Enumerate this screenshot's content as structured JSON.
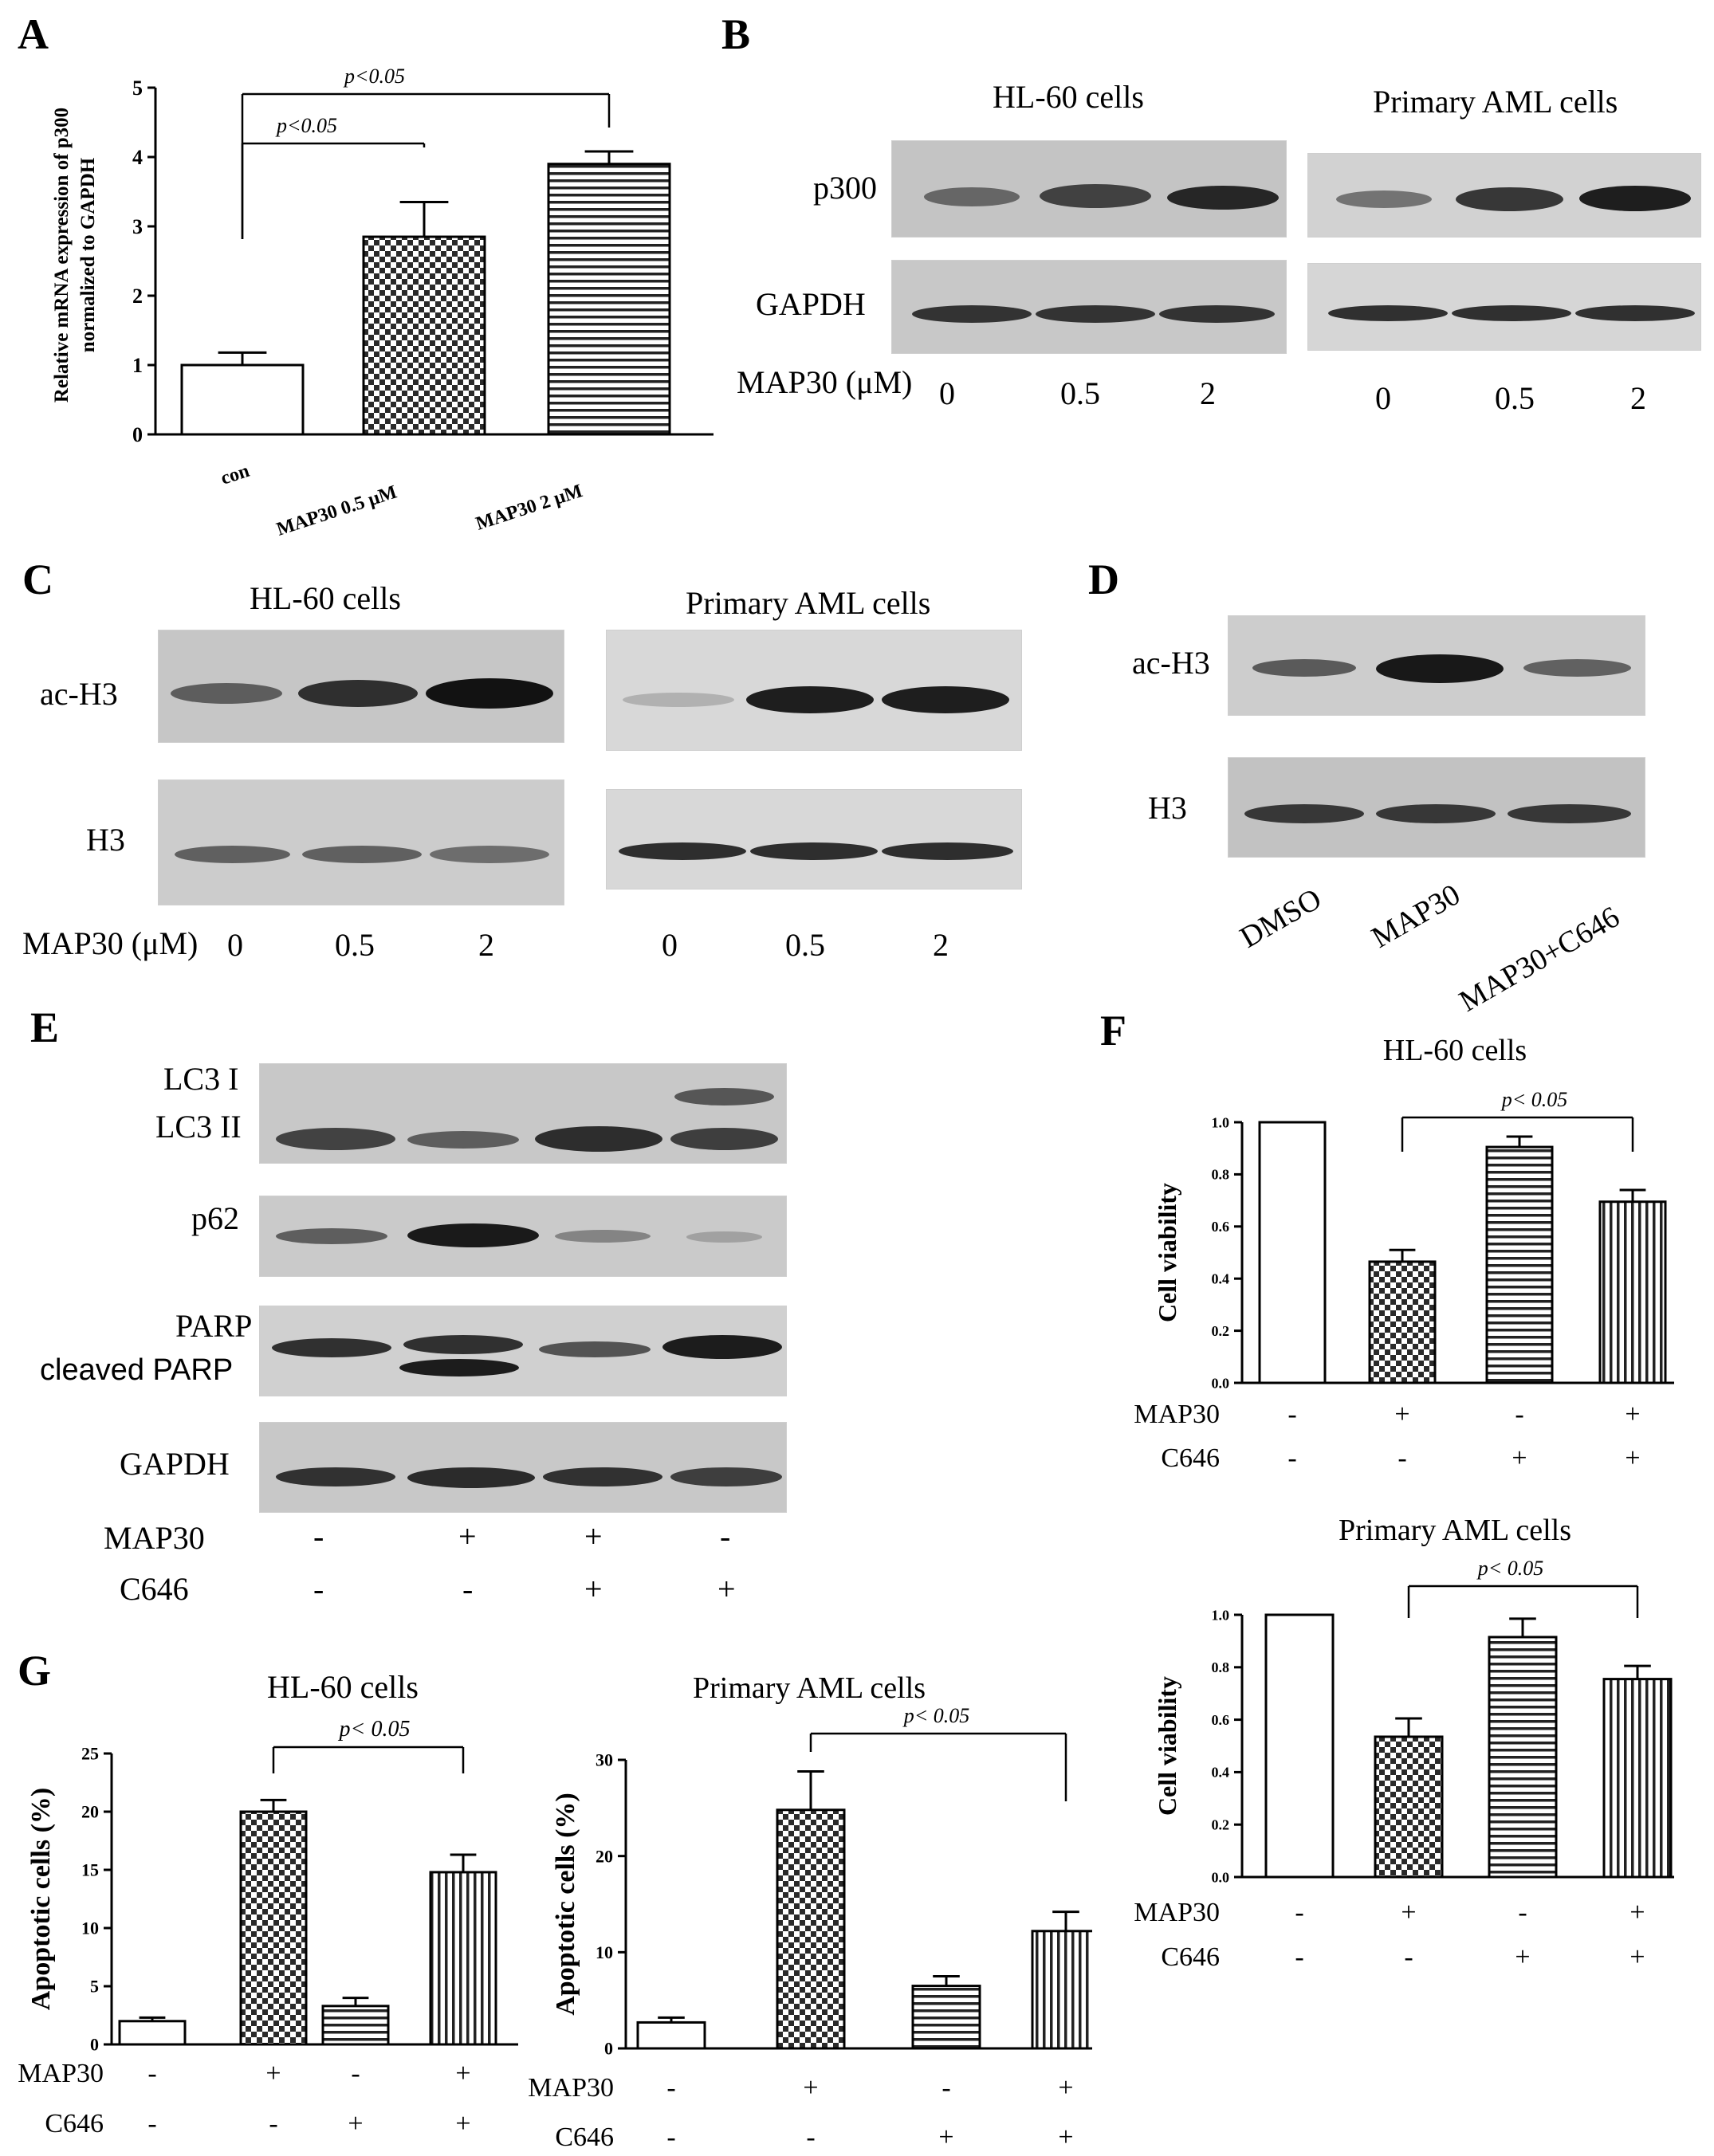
{
  "patterns": {
    "checker": "#2a2a2a",
    "stripe": "#222222"
  },
  "panel_letters": {
    "a": "A",
    "b": "B",
    "c": "C",
    "d": "D",
    "e": "E",
    "f": "F",
    "g": "G"
  },
  "panel_a": {
    "ylabel_line1": "Relative mRNA expression of p300",
    "ylabel_line2": "normalized to GAPDH",
    "sig1": "p<0.05",
    "sig2": "p<0.05"
  },
  "panel_b": {
    "title_left": "HL-60 cells",
    "title_right": "Primary AML cells",
    "row1": "p300",
    "row2": "GAPDH",
    "dose_label": "MAP30 (μM)",
    "doses": [
      "0",
      "0.5",
      "2"
    ]
  },
  "panel_c": {
    "title_left": "HL-60 cells",
    "title_right": "Primary AML cells",
    "row1": "ac-H3",
    "row2": "H3",
    "dose_label": "MAP30 (μM)",
    "doses": [
      "0",
      "0.5",
      "2"
    ]
  },
  "panel_d": {
    "row1": "ac-H3",
    "row2": "H3",
    "lanes": [
      "DMSO",
      "MAP30",
      "MAP30+C646"
    ]
  },
  "panel_e": {
    "lc3_1": "LC3 I",
    "lc3_2": "LC3 II",
    "p62": "p62",
    "parp": "PARP",
    "cleaved": "cleaved PARP",
    "gapdh": "GAPDH",
    "map30": "MAP30",
    "c646": "C646",
    "map30_signs": [
      "-",
      "+",
      "+",
      "-"
    ],
    "c646_signs": [
      "-",
      "-",
      "+",
      "+"
    ]
  },
  "treatment": {
    "map30": "MAP30",
    "c646": "C646",
    "map30_signs": [
      "-",
      "+",
      "-",
      "+"
    ],
    "c646_signs": [
      "-",
      "-",
      "+",
      "+"
    ]
  },
  "chart_data": [
    {
      "id": "A",
      "type": "bar",
      "categories": [
        "con",
        "MAP30 0.5 μM",
        "MAP30 2 μM"
      ],
      "values": [
        1.0,
        2.85,
        3.9
      ],
      "errors": [
        0.18,
        0.5,
        0.18
      ],
      "patterns": [
        "white",
        "checker",
        "hstripe"
      ],
      "ylim": [
        0,
        5
      ],
      "yticks": [
        "0",
        "1",
        "2",
        "3",
        "4",
        "5"
      ],
      "ylabel": "Relative mRNA expression of p300 normalized to GAPDH",
      "annotations": [
        {
          "text": "p<0.05",
          "from": "con",
          "to": "MAP30 0.5 μM"
        },
        {
          "text": "p<0.05",
          "from": "con",
          "to": "MAP30 2 μM"
        }
      ]
    },
    {
      "id": "F-HL60",
      "type": "bar",
      "title": "HL-60 cells",
      "values": [
        1.0,
        0.465,
        0.905,
        0.695
      ],
      "errors": [
        0,
        0.045,
        0.04,
        0.045
      ],
      "patterns": [
        "white",
        "checker",
        "hstripe",
        "vstripe"
      ],
      "ylim": [
        0,
        1.0
      ],
      "yticks": [
        "0.0",
        "0.2",
        "0.4",
        "0.6",
        "0.8",
        "1.0"
      ],
      "ylabel": "Cell viability",
      "annotations": [
        {
          "text": "p< 0.05",
          "from": 1,
          "to": 3
        }
      ]
    },
    {
      "id": "F-AML",
      "type": "bar",
      "title": "Primary AML cells",
      "values": [
        1.0,
        0.535,
        0.915,
        0.755
      ],
      "errors": [
        0,
        0.07,
        0.07,
        0.05
      ],
      "patterns": [
        "white",
        "checker",
        "hstripe",
        "vstripe"
      ],
      "ylim": [
        0,
        1.0
      ],
      "yticks": [
        "0.0",
        "0.2",
        "0.4",
        "0.6",
        "0.8",
        "1.0"
      ],
      "ylabel": "Cell viability",
      "annotations": [
        {
          "text": "p< 0.05",
          "from": 1,
          "to": 3
        }
      ]
    },
    {
      "id": "G-HL60",
      "type": "bar",
      "title": "HL-60 cells",
      "values": [
        2.0,
        20.0,
        3.3,
        14.8
      ],
      "errors": [
        0.3,
        1.0,
        0.7,
        1.5
      ],
      "patterns": [
        "white",
        "checker",
        "hstripe",
        "vstripe"
      ],
      "ylim": [
        0,
        25
      ],
      "yticks": [
        "0",
        "5",
        "10",
        "15",
        "20",
        "25"
      ],
      "ylabel": "Apoptotic cells (%)",
      "annotations": [
        {
          "text": "p< 0.05",
          "from": 1,
          "to": 3
        }
      ]
    },
    {
      "id": "G-AML",
      "type": "bar",
      "title": "Primary AML cells",
      "values": [
        2.7,
        24.8,
        6.5,
        12.2
      ],
      "errors": [
        0.5,
        4.0,
        1.0,
        2.0
      ],
      "patterns": [
        "white",
        "checker",
        "hstripe",
        "vstripe"
      ],
      "ylim": [
        0,
        30
      ],
      "yticks": [
        "0",
        "10",
        "20",
        "30"
      ],
      "ylabel": "Apoptotic cells (%)",
      "annotations": [
        {
          "text": "p< 0.05",
          "from": 1,
          "to": 3
        }
      ]
    }
  ]
}
